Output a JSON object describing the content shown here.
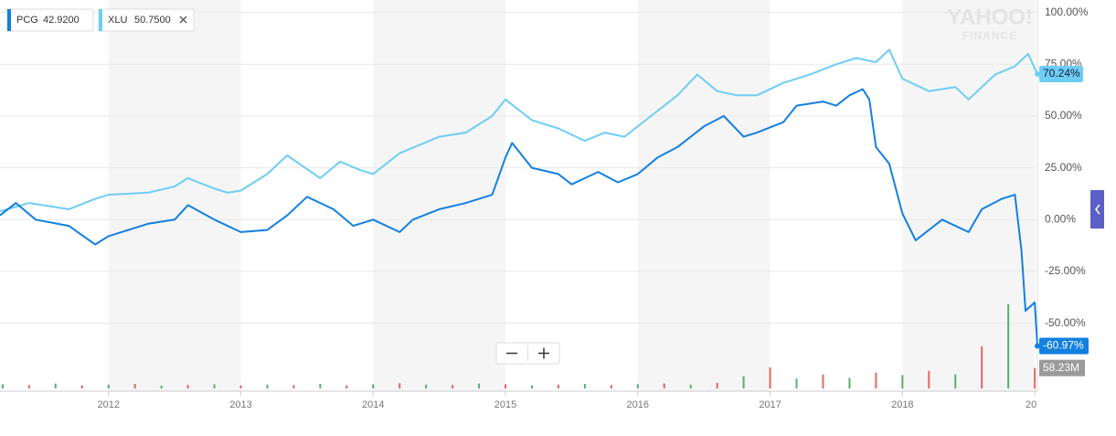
{
  "chart_data": {
    "type": "line",
    "watermark": [
      "YAHOO!",
      "FINANCE"
    ],
    "xlim": [
      2011.18,
      2019.02
    ],
    "xticks": [
      2012,
      2013,
      2014,
      2015,
      2016,
      2017,
      2018,
      {
        "value": 2019,
        "label": "20"
      }
    ],
    "ylim": [
      -74,
      106
    ],
    "yticks": [
      {
        "value": -50,
        "label": "-50.00%"
      },
      {
        "value": -25,
        "label": "-25.00%"
      },
      {
        "value": 0,
        "label": "0.00%"
      },
      {
        "value": 25,
        "label": "25.00%"
      },
      {
        "value": 50,
        "label": "50.00%"
      },
      {
        "value": 75,
        "label": "75.00%"
      },
      {
        "value": 100,
        "label": "100.00%"
      }
    ],
    "grid": true,
    "series": [
      {
        "name": "PCG",
        "price_label": "42.9200",
        "color": "#1380e0",
        "end_label": "-60.97%",
        "x": [
          2011.18,
          2011.3,
          2011.45,
          2011.7,
          2011.9,
          2012.0,
          2012.3,
          2012.5,
          2012.6,
          2012.8,
          2013.0,
          2013.2,
          2013.35,
          2013.5,
          2013.7,
          2013.85,
          2014.0,
          2014.2,
          2014.3,
          2014.5,
          2014.7,
          2014.9,
          2015.0,
          2015.05,
          2015.2,
          2015.4,
          2015.5,
          2015.7,
          2015.85,
          2016.0,
          2016.15,
          2016.3,
          2016.5,
          2016.65,
          2016.8,
          2016.9,
          2017.1,
          2017.2,
          2017.4,
          2017.5,
          2017.6,
          2017.7,
          2017.75,
          2017.8,
          2017.9,
          2018.0,
          2018.1,
          2018.3,
          2018.5,
          2018.6,
          2018.75,
          2018.85,
          2018.9,
          2018.93,
          2019.0,
          2019.02
        ],
        "values": [
          2,
          8,
          0,
          -3,
          -12,
          -8,
          -2,
          0,
          7,
          0,
          -6,
          -5,
          2,
          11,
          5,
          -3,
          0,
          -6,
          0,
          5,
          8,
          12,
          30,
          37,
          25,
          22,
          17,
          23,
          18,
          22,
          30,
          35,
          45,
          50,
          40,
          42,
          47,
          55,
          57,
          55,
          60,
          63,
          58,
          35,
          27,
          3,
          -10,
          0,
          -6,
          5,
          10,
          12,
          -15,
          -44,
          -40,
          -60.97
        ]
      },
      {
        "name": "XLU",
        "price_label": "50.7500",
        "color": "#6fcdf5",
        "end_label": "70.24%",
        "x": [
          2011.18,
          2011.4,
          2011.7,
          2011.9,
          2012.0,
          2012.3,
          2012.5,
          2012.6,
          2012.8,
          2012.9,
          2013.0,
          2013.2,
          2013.35,
          2013.6,
          2013.75,
          2013.9,
          2014.0,
          2014.2,
          2014.5,
          2014.7,
          2014.9,
          2015.0,
          2015.2,
          2015.4,
          2015.6,
          2015.75,
          2015.9,
          2016.1,
          2016.3,
          2016.45,
          2016.6,
          2016.75,
          2016.9,
          2017.1,
          2017.3,
          2017.5,
          2017.65,
          2017.8,
          2017.9,
          2018.0,
          2018.2,
          2018.4,
          2018.5,
          2018.7,
          2018.85,
          2018.95,
          2019.02
        ],
        "values": [
          4,
          8,
          5,
          10,
          12,
          13,
          16,
          20,
          15,
          13,
          14,
          22,
          31,
          20,
          28,
          24,
          22,
          32,
          40,
          42,
          50,
          58,
          48,
          44,
          38,
          42,
          40,
          50,
          60,
          70,
          62,
          60,
          60,
          66,
          70,
          75,
          78,
          76,
          82,
          68,
          62,
          64,
          58,
          70,
          74,
          80,
          70.24
        ]
      }
    ],
    "volume": {
      "label": "58.23M",
      "vlim": [
        0,
        260
      ],
      "colors": [
        "#2e9e4f",
        "#e0443c"
      ],
      "x": [
        2011.2,
        2011.4,
        2011.6,
        2011.8,
        2012.0,
        2012.2,
        2012.4,
        2012.6,
        2012.8,
        2013.0,
        2013.2,
        2013.4,
        2013.6,
        2013.8,
        2014.0,
        2014.2,
        2014.4,
        2014.6,
        2014.8,
        2015.0,
        2015.2,
        2015.4,
        2015.6,
        2015.8,
        2016.0,
        2016.2,
        2016.4,
        2016.6,
        2016.8,
        2017.0,
        2017.2,
        2017.4,
        2017.6,
        2017.8,
        2018.0,
        2018.2,
        2018.4,
        2018.6,
        2018.8,
        2019.0
      ],
      "values": [
        12,
        10,
        14,
        9,
        11,
        13,
        8,
        10,
        12,
        9,
        11,
        10,
        13,
        9,
        12,
        15,
        11,
        10,
        14,
        12,
        9,
        11,
        13,
        10,
        12,
        14,
        11,
        16,
        35,
        60,
        28,
        40,
        30,
        45,
        38,
        50,
        40,
        120,
        240,
        58.23
      ]
    }
  }
}
